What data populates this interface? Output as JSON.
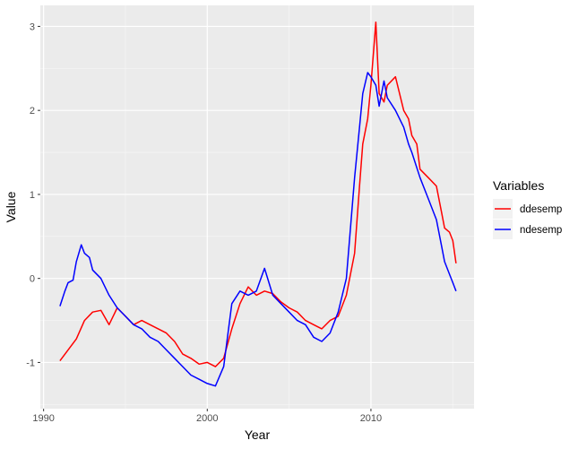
{
  "chart_data": {
    "type": "line",
    "xlabel": "Year",
    "ylabel": "Value",
    "xlim": [
      1989.8,
      2016.3
    ],
    "ylim": [
      -1.55,
      3.25
    ],
    "xticks": [
      1990,
      2000,
      2010
    ],
    "xtick_labels": [
      "1990",
      "2000",
      "2010"
    ],
    "yticks": [
      -1,
      0,
      1,
      2,
      3
    ],
    "ytick_labels": [
      "-1",
      "0",
      "1",
      "2",
      "3"
    ],
    "legend": {
      "title": "Variables",
      "position": "right"
    },
    "series": [
      {
        "name": "ddesemp",
        "color": "#ff0000",
        "x": [
          1991.0,
          1991.5,
          1992.0,
          1992.5,
          1993.0,
          1993.5,
          1994.0,
          1994.5,
          1995.0,
          1995.5,
          1996.0,
          1996.5,
          1997.0,
          1997.5,
          1998.0,
          1998.5,
          1999.0,
          1999.5,
          2000.0,
          2000.5,
          2001.0,
          2001.5,
          2002.0,
          2002.5,
          2003.0,
          2003.5,
          2004.0,
          2004.5,
          2005.0,
          2005.5,
          2006.0,
          2006.5,
          2007.0,
          2007.5,
          2008.0,
          2008.5,
          2009.0,
          2009.3,
          2009.5,
          2009.8,
          2010.0,
          2010.3,
          2010.5,
          2010.8,
          2011.0,
          2011.5,
          2012.0,
          2012.3,
          2012.5,
          2012.8,
          2013.0,
          2013.5,
          2014.0,
          2014.3,
          2014.5,
          2014.8,
          2015.0,
          2015.2
        ],
        "y": [
          -0.98,
          -0.85,
          -0.72,
          -0.5,
          -0.4,
          -0.38,
          -0.55,
          -0.35,
          -0.45,
          -0.55,
          -0.5,
          -0.55,
          -0.6,
          -0.65,
          -0.75,
          -0.9,
          -0.95,
          -1.02,
          -1.0,
          -1.05,
          -0.95,
          -0.6,
          -0.3,
          -0.1,
          -0.2,
          -0.15,
          -0.18,
          -0.28,
          -0.35,
          -0.4,
          -0.5,
          -0.55,
          -0.6,
          -0.5,
          -0.45,
          -0.2,
          0.3,
          1.1,
          1.6,
          1.9,
          2.3,
          3.05,
          2.2,
          2.1,
          2.3,
          2.4,
          2.0,
          1.9,
          1.7,
          1.6,
          1.3,
          1.2,
          1.1,
          0.8,
          0.6,
          0.55,
          0.45,
          0.18
        ]
      },
      {
        "name": "ndesemp",
        "color": "#0000ff",
        "x": [
          1991.0,
          1991.3,
          1991.5,
          1991.8,
          1992.0,
          1992.3,
          1992.5,
          1992.8,
          1993.0,
          1993.5,
          1994.0,
          1994.5,
          1995.0,
          1995.5,
          1996.0,
          1996.5,
          1997.0,
          1997.5,
          1998.0,
          1998.5,
          1999.0,
          1999.5,
          2000.0,
          2000.5,
          2001.0,
          2001.5,
          2002.0,
          2002.5,
          2003.0,
          2003.5,
          2004.0,
          2004.5,
          2005.0,
          2005.5,
          2006.0,
          2006.5,
          2007.0,
          2007.5,
          2008.0,
          2008.5,
          2009.0,
          2009.3,
          2009.5,
          2009.8,
          2010.0,
          2010.3,
          2010.5,
          2010.8,
          2011.0,
          2011.5,
          2012.0,
          2012.3,
          2012.5,
          2013.0,
          2013.5,
          2014.0,
          2014.3,
          2014.5,
          2014.8,
          2015.0,
          2015.2
        ],
        "y": [
          -0.33,
          -0.15,
          -0.05,
          -0.02,
          0.2,
          0.4,
          0.3,
          0.25,
          0.1,
          0.0,
          -0.2,
          -0.35,
          -0.45,
          -0.55,
          -0.6,
          -0.7,
          -0.75,
          -0.85,
          -0.95,
          -1.05,
          -1.15,
          -1.2,
          -1.25,
          -1.28,
          -1.05,
          -0.3,
          -0.15,
          -0.2,
          -0.15,
          0.12,
          -0.2,
          -0.3,
          -0.4,
          -0.5,
          -0.55,
          -0.7,
          -0.75,
          -0.65,
          -0.4,
          0.0,
          1.2,
          1.8,
          2.2,
          2.45,
          2.4,
          2.3,
          2.05,
          2.35,
          2.15,
          2.0,
          1.8,
          1.6,
          1.5,
          1.2,
          0.95,
          0.7,
          0.4,
          0.2,
          0.05,
          -0.05,
          -0.15
        ]
      }
    ]
  }
}
